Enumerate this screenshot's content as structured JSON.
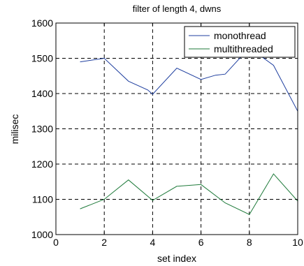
{
  "chart_data": {
    "type": "line",
    "title": "filter of length 4, dwns",
    "xlabel": "set index",
    "ylabel": "milisec",
    "xlim": [
      0,
      10
    ],
    "ylim": [
      1000,
      1600
    ],
    "xticks": [
      0,
      2,
      4,
      6,
      8,
      10
    ],
    "yticks": [
      1000,
      1100,
      1200,
      1300,
      1400,
      1500,
      1600
    ],
    "grid": true,
    "legend_position": "top-right",
    "series": [
      {
        "name": "monothread",
        "color": "#1f3f9f",
        "x": [
          1,
          2,
          3,
          3.8,
          4,
          5,
          6,
          6.6,
          7,
          8,
          9,
          10
        ],
        "y": [
          1490,
          1500,
          1435,
          1410,
          1398,
          1472,
          1440,
          1452,
          1455,
          1530,
          1480,
          1350
        ]
      },
      {
        "name": "multithreaded",
        "color": "#1e7a3a",
        "x": [
          1,
          2,
          3,
          4,
          5,
          6,
          7,
          8,
          9,
          10
        ],
        "y": [
          1073,
          1100,
          1155,
          1097,
          1137,
          1142,
          1090,
          1057,
          1172,
          1095
        ]
      }
    ]
  }
}
